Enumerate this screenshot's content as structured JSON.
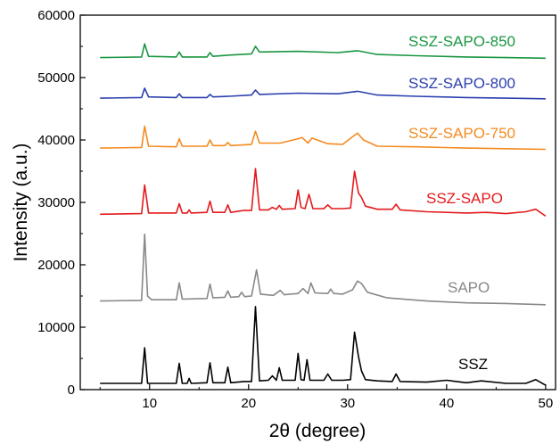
{
  "chart_data": {
    "type": "line",
    "title": "",
    "xlabel": "2θ (degree)",
    "ylabel": "Intensity (a.u.)",
    "xlim": [
      3,
      51
    ],
    "ylim": [
      0,
      60000
    ],
    "x_ticks": [
      10,
      20,
      30,
      40,
      50
    ],
    "y_ticks": [
      0,
      10000,
      20000,
      30000,
      40000,
      50000,
      60000
    ],
    "grid": false,
    "legend": "none",
    "series": [
      {
        "name": "SSZ-SAPO-850",
        "color": "#1a9641",
        "x": [
          5,
          9.2,
          9.5,
          9.9,
          12.7,
          13.0,
          13.3,
          15.8,
          16.1,
          16.4,
          18,
          20.3,
          20.7,
          21.1,
          25,
          29,
          31.0,
          33,
          37,
          42,
          46,
          50
        ],
        "y": [
          53200,
          53300,
          55400,
          53400,
          53300,
          54100,
          53300,
          53300,
          54000,
          53400,
          53600,
          53800,
          55000,
          54100,
          54200,
          54000,
          54300,
          53700,
          53500,
          53300,
          53200,
          53100
        ]
      },
      {
        "name": "SSZ-SAPO-800",
        "color": "#2b3fae",
        "x": [
          5,
          9.2,
          9.5,
          9.9,
          12.7,
          13.0,
          13.3,
          15.8,
          16.1,
          16.4,
          18,
          20.3,
          20.7,
          21.1,
          25,
          29,
          31.0,
          33,
          37,
          42,
          46,
          50
        ],
        "y": [
          46700,
          46800,
          48300,
          46900,
          46800,
          47400,
          46800,
          46800,
          47300,
          46900,
          47000,
          47200,
          48000,
          47300,
          47500,
          47400,
          47800,
          47200,
          47000,
          46800,
          46700,
          46600
        ]
      },
      {
        "name": "SSZ-SAPO-750",
        "color": "#f58a1f",
        "x": [
          5,
          9.2,
          9.5,
          9.9,
          12.7,
          13.0,
          13.3,
          15.8,
          16.1,
          16.4,
          17.6,
          17.9,
          18.2,
          20.3,
          20.7,
          21.1,
          23.2,
          25.0,
          25.4,
          26.0,
          26.4,
          28,
          29.5,
          31.0,
          31.6,
          33,
          37,
          42,
          46,
          50
        ],
        "y": [
          38700,
          38800,
          42200,
          39000,
          38900,
          40200,
          39000,
          39000,
          40000,
          39100,
          39100,
          39600,
          39100,
          39300,
          41400,
          39500,
          39500,
          40200,
          40400,
          39500,
          40300,
          39400,
          39300,
          41100,
          40000,
          39000,
          38900,
          38700,
          38600,
          38500
        ]
      },
      {
        "name": "SSZ-SAPO",
        "color": "#e31a1c",
        "x": [
          5,
          9.2,
          9.5,
          9.9,
          12.7,
          13.0,
          13.3,
          13.8,
          14.0,
          14.2,
          15.8,
          16.1,
          16.4,
          17.6,
          17.9,
          18.2,
          19.5,
          20.3,
          20.7,
          21.1,
          22.0,
          22.4,
          22.8,
          23.1,
          23.4,
          24.7,
          25.0,
          25.3,
          25.7,
          26.1,
          26.5,
          27.6,
          28.0,
          28.4,
          29.5,
          30.3,
          30.7,
          31.1,
          31.4,
          31.8,
          33,
          34.5,
          34.9,
          35.3,
          38,
          42,
          44,
          46,
          48,
          49,
          50
        ],
        "y": [
          28100,
          28200,
          32800,
          28300,
          28300,
          29800,
          28300,
          28300,
          28800,
          28300,
          28400,
          30200,
          28400,
          28400,
          29600,
          28400,
          28700,
          28700,
          35400,
          28800,
          28800,
          29200,
          28900,
          29500,
          28900,
          29000,
          32000,
          29200,
          29000,
          31300,
          29000,
          29000,
          29600,
          29000,
          29000,
          29100,
          35000,
          31500,
          30800,
          29400,
          28900,
          28900,
          29700,
          28800,
          28500,
          28300,
          28400,
          28200,
          28500,
          28900,
          27800
        ]
      },
      {
        "name": "SAPO",
        "color": "#888888",
        "x": [
          5,
          9.2,
          9.5,
          9.8,
          10.2,
          12.7,
          13.0,
          13.3,
          15.8,
          16.1,
          16.4,
          17.6,
          17.9,
          18.2,
          19.0,
          19.3,
          19.6,
          20.3,
          20.8,
          21.2,
          22.5,
          23.2,
          23.6,
          25.0,
          25.5,
          26.0,
          26.3,
          26.7,
          28.0,
          28.3,
          28.6,
          29.5,
          30.5,
          31.0,
          31.4,
          32.0,
          34,
          38,
          42,
          46,
          50
        ],
        "y": [
          14200,
          14300,
          24900,
          15000,
          14400,
          14400,
          17100,
          14500,
          14600,
          16900,
          14700,
          14800,
          15800,
          14800,
          14900,
          15600,
          14900,
          15000,
          19200,
          15300,
          15100,
          15900,
          15200,
          15400,
          16200,
          15400,
          17100,
          15500,
          15400,
          16100,
          15400,
          15300,
          16000,
          17400,
          17000,
          15600,
          14700,
          14200,
          13900,
          13800,
          13600
        ]
      },
      {
        "name": "SSZ",
        "color": "#000000",
        "x": [
          5,
          9.2,
          9.5,
          9.8,
          12.7,
          13.0,
          13.3,
          13.8,
          14.0,
          14.2,
          15.8,
          16.1,
          16.4,
          17.6,
          17.9,
          18.2,
          19.5,
          20.3,
          20.7,
          21.1,
          22.0,
          22.4,
          22.8,
          23.1,
          23.4,
          24.7,
          25.0,
          25.3,
          25.6,
          25.9,
          26.2,
          27.6,
          28.0,
          28.4,
          29.5,
          30.3,
          30.7,
          31.1,
          31.4,
          31.8,
          33,
          34.5,
          34.9,
          35.3,
          38,
          40.0,
          42,
          43.5,
          46,
          48,
          49,
          50
        ],
        "y": [
          1000,
          1000,
          6700,
          1000,
          1000,
          4200,
          1000,
          1000,
          1800,
          1000,
          1100,
          4300,
          1100,
          1100,
          3600,
          1100,
          1300,
          1300,
          13300,
          1400,
          1500,
          2200,
          1500,
          3500,
          1500,
          1500,
          5800,
          1600,
          1500,
          4800,
          1500,
          1500,
          2500,
          1500,
          1500,
          1600,
          9200,
          5300,
          3000,
          1600,
          1400,
          1300,
          2500,
          1300,
          1200,
          1500,
          1100,
          1400,
          1000,
          1000,
          1600,
          700
        ]
      }
    ]
  }
}
